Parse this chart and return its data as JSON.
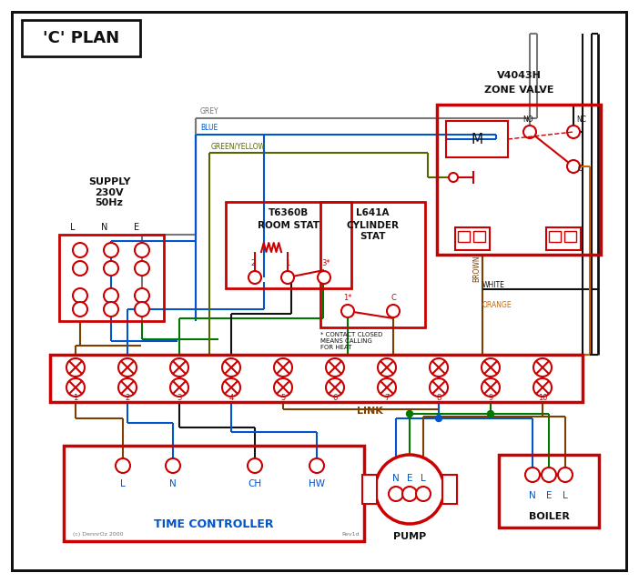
{
  "title": "'C' PLAN",
  "bg": "#ffffff",
  "red": "#cc0000",
  "blue": "#0055cc",
  "green": "#007700",
  "grey": "#777777",
  "brown": "#7B3F00",
  "orange": "#cc6600",
  "black": "#111111",
  "gy": "#556600",
  "supply_text": "SUPPLY\n230V\n50Hz",
  "room_stat_title": "T6360B",
  "room_stat_sub": "ROOM STAT",
  "cyl_stat_title": "L641A",
  "cyl_stat_sub": "CYLINDER\nSTAT",
  "zone_valve_title": "V4043H",
  "zone_valve_sub": "ZONE VALVE",
  "tc_text": "TIME CONTROLLER",
  "pump_text": "PUMP",
  "boiler_text": "BOILER",
  "link_text": "LINK",
  "contact_text": "* CONTACT CLOSED\nMEANS CALLING\nFOR HEAT",
  "copyright_text": "(c) DennrOz 2000",
  "rev_text": "Rev1d",
  "grey_label": "GREY",
  "blue_label": "BLUE",
  "gy_label": "GREEN/YELLOW",
  "brown_label": "BROWN",
  "white_label": "WHITE",
  "orange_label": "ORANGE",
  "term_labels": [
    "1",
    "2",
    "3",
    "4",
    "5",
    "6",
    "7",
    "8",
    "9",
    "10"
  ]
}
